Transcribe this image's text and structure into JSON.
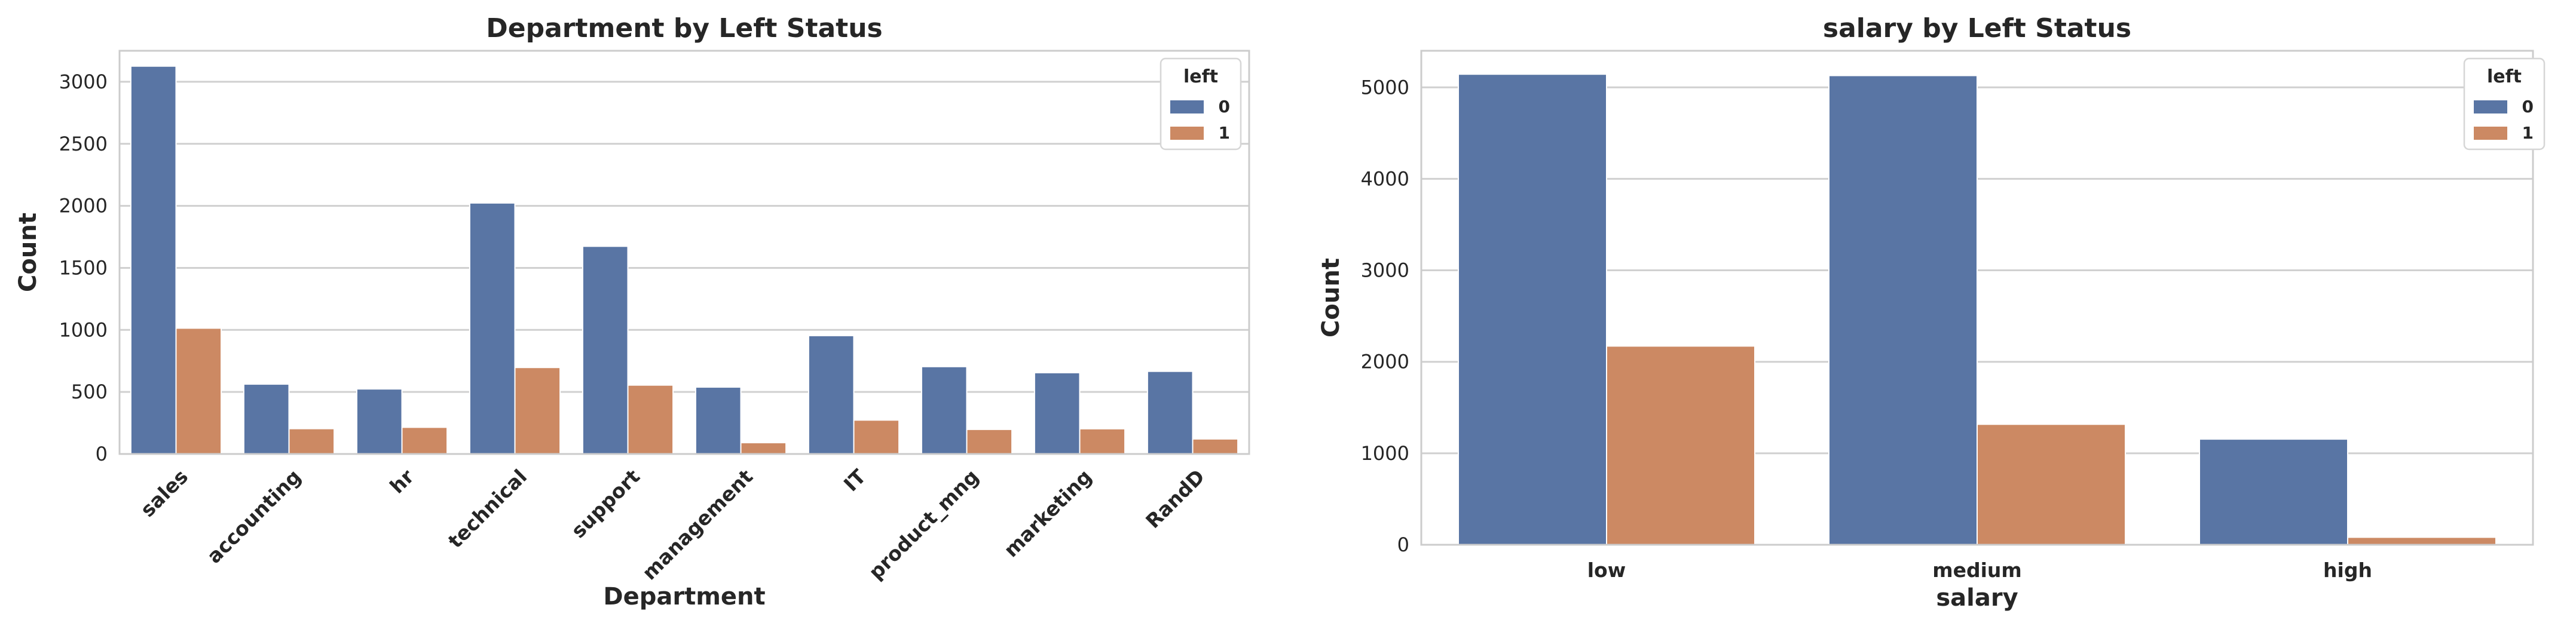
{
  "chart_data": [
    {
      "type": "bar",
      "title": "Department by Left Status",
      "xlabel": "Department",
      "ylabel": "Count",
      "categories": [
        "sales",
        "accounting",
        "hr",
        "technical",
        "support",
        "management",
        "IT",
        "product_mng",
        "marketing",
        "RandD"
      ],
      "series": [
        {
          "name": "0",
          "values": [
            3126,
            563,
            524,
            2023,
            1674,
            539,
            954,
            704,
            655,
            666
          ],
          "color": "#5975a4"
        },
        {
          "name": "1",
          "values": [
            1014,
            204,
            215,
            697,
            555,
            91,
            273,
            198,
            203,
            121
          ],
          "color": "#cc8963"
        }
      ],
      "ylim": [
        0,
        3250
      ],
      "yticks": [
        0,
        500,
        1000,
        1500,
        2000,
        2500,
        3000
      ],
      "grid": true,
      "legend_title": "left",
      "legend_position": "top-right",
      "x_tick_rotation": 45
    },
    {
      "type": "bar",
      "title": "salary by Left Status",
      "xlabel": "salary",
      "ylabel": "Count",
      "categories": [
        "low",
        "medium",
        "high"
      ],
      "series": [
        {
          "name": "0",
          "values": [
            5144,
            5129,
            1155
          ],
          "color": "#5975a4"
        },
        {
          "name": "1",
          "values": [
            2172,
            1317,
            82
          ],
          "color": "#cc8963"
        }
      ],
      "ylim": [
        0,
        5400
      ],
      "yticks": [
        0,
        1000,
        2000,
        3000,
        4000,
        5000
      ],
      "grid": true,
      "legend_title": "left",
      "legend_position": "top-right",
      "x_tick_rotation": 0
    }
  ]
}
